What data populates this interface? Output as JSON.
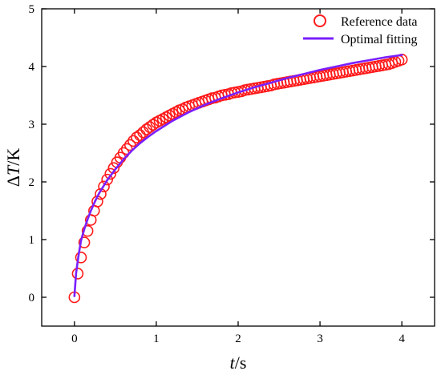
{
  "chart_data": {
    "type": "scatter",
    "xlabel": {
      "italic": "t",
      "rest": "/s"
    },
    "ylabel": {
      "prefix": "Δ",
      "italic": "T",
      "rest": "/K"
    },
    "xlim": [
      -0.4,
      4.4
    ],
    "ylim": [
      -0.5,
      5
    ],
    "xticks": [
      "0",
      "1",
      "2",
      "3",
      "4"
    ],
    "yticks": [
      "0",
      "1",
      "2",
      "3",
      "4",
      "5"
    ],
    "xtick_values": [
      0,
      1,
      2,
      3,
      4
    ],
    "ytick_values": [
      0,
      1,
      2,
      3,
      4,
      5
    ],
    "grid": false,
    "legend_position": "top-right",
    "series": [
      {
        "name": "Reference data",
        "kind": "markers",
        "marker": "hollow-circle",
        "color": "#ff1a1a",
        "x": [
          0.0,
          0.04,
          0.08,
          0.12,
          0.16,
          0.2,
          0.24,
          0.28,
          0.32,
          0.36,
          0.4,
          0.44,
          0.48,
          0.52,
          0.56,
          0.6,
          0.64,
          0.68,
          0.72,
          0.76,
          0.8,
          0.84,
          0.88,
          0.92,
          0.96,
          1.0,
          1.04,
          1.08,
          1.12,
          1.16,
          1.2,
          1.24,
          1.28,
          1.32,
          1.36,
          1.4,
          1.44,
          1.48,
          1.52,
          1.56,
          1.6,
          1.64,
          1.68,
          1.72,
          1.76,
          1.8,
          1.84,
          1.88,
          1.92,
          1.96,
          2.0,
          2.04,
          2.08,
          2.12,
          2.16,
          2.2,
          2.24,
          2.28,
          2.32,
          2.36,
          2.4,
          2.44,
          2.48,
          2.52,
          2.56,
          2.6,
          2.64,
          2.68,
          2.72,
          2.76,
          2.8,
          2.84,
          2.88,
          2.92,
          2.96,
          3.0,
          3.04,
          3.08,
          3.12,
          3.16,
          3.2,
          3.24,
          3.28,
          3.32,
          3.36,
          3.4,
          3.44,
          3.48,
          3.52,
          3.56,
          3.6,
          3.64,
          3.68,
          3.72,
          3.76,
          3.8,
          3.84,
          3.88,
          3.92,
          3.96,
          4.0
        ],
        "y": [
          0.0,
          0.41,
          0.69,
          0.95,
          1.15,
          1.34,
          1.5,
          1.66,
          1.79,
          1.92,
          2.04,
          2.14,
          2.24,
          2.34,
          2.42,
          2.5,
          2.57,
          2.64,
          2.71,
          2.77,
          2.81,
          2.86,
          2.91,
          2.95,
          2.99,
          3.03,
          3.06,
          3.09,
          3.12,
          3.15,
          3.18,
          3.21,
          3.24,
          3.26,
          3.29,
          3.31,
          3.33,
          3.35,
          3.37,
          3.39,
          3.41,
          3.43,
          3.45,
          3.46,
          3.48,
          3.5,
          3.51,
          3.52,
          3.54,
          3.55,
          3.56,
          3.57,
          3.59,
          3.6,
          3.61,
          3.62,
          3.63,
          3.64,
          3.65,
          3.66,
          3.67,
          3.69,
          3.7,
          3.71,
          3.72,
          3.73,
          3.74,
          3.75,
          3.76,
          3.77,
          3.78,
          3.79,
          3.8,
          3.81,
          3.82,
          3.83,
          3.84,
          3.85,
          3.86,
          3.87,
          3.88,
          3.89,
          3.9,
          3.91,
          3.92,
          3.93,
          3.94,
          3.95,
          3.96,
          3.97,
          3.98,
          3.99,
          4.0,
          4.01,
          4.02,
          4.03,
          4.04,
          4.06,
          4.08,
          4.1,
          4.12
        ]
      },
      {
        "name": "Optimal fitting",
        "kind": "line",
        "color": "#7a1fff",
        "x": [
          0.0,
          0.02,
          0.05,
          0.08,
          0.12,
          0.16,
          0.2,
          0.25,
          0.3,
          0.4,
          0.5,
          0.6,
          0.7,
          0.8,
          0.9,
          1.0,
          1.2,
          1.4,
          1.6,
          1.8,
          2.0,
          2.2,
          2.4,
          2.6,
          2.8,
          3.0,
          3.2,
          3.4,
          3.6,
          3.8,
          4.0
        ],
        "y": [
          0.02,
          0.42,
          0.72,
          0.98,
          1.18,
          1.35,
          1.5,
          1.66,
          1.8,
          2.03,
          2.22,
          2.39,
          2.54,
          2.67,
          2.78,
          2.88,
          3.06,
          3.21,
          3.34,
          3.45,
          3.55,
          3.64,
          3.72,
          3.8,
          3.87,
          3.94,
          4.0,
          4.06,
          4.11,
          4.16,
          4.2
        ]
      }
    ]
  }
}
